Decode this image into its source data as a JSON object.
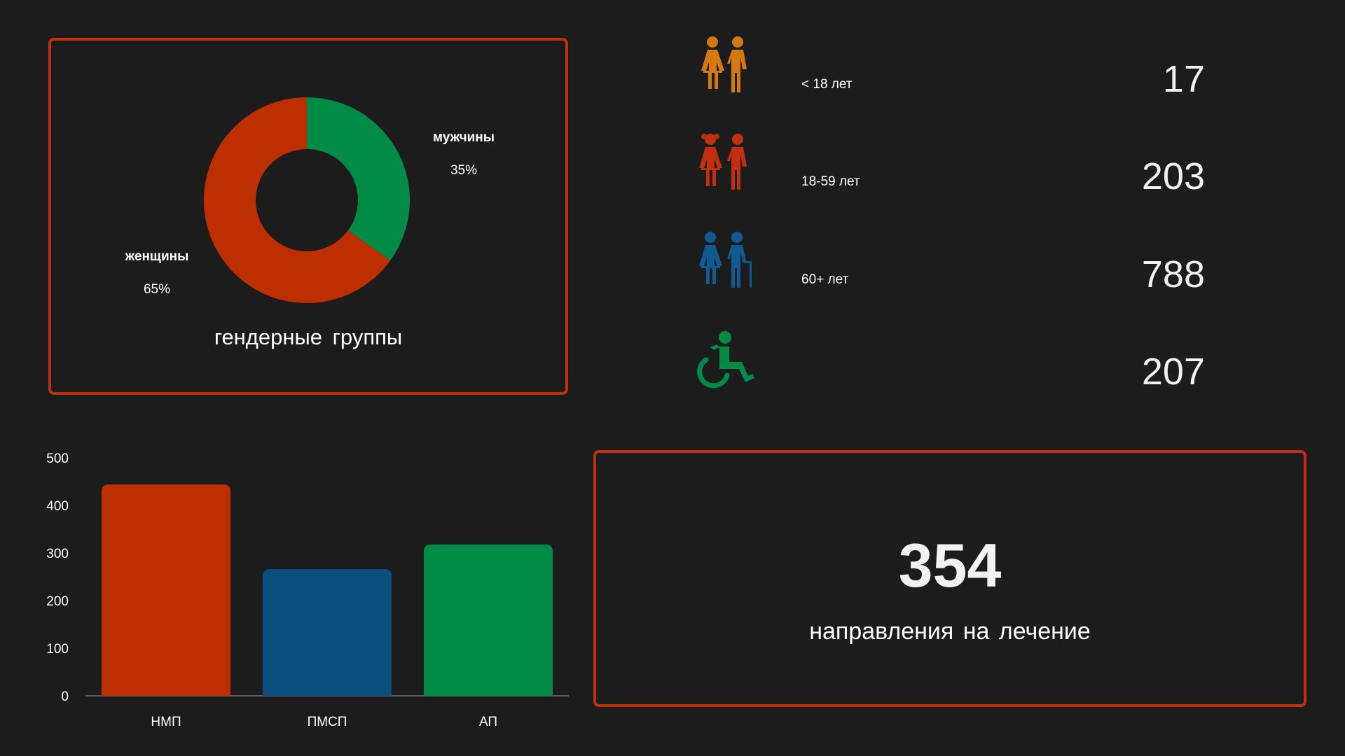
{
  "gender_panel": {
    "title": "гендерные группы",
    "slices": [
      {
        "label": "мужчины",
        "pct_text": "35%",
        "value": 35,
        "color": "#018a45"
      },
      {
        "label": "женщины",
        "pct_text": "65%",
        "value": 65,
        "color": "#be2f00"
      }
    ]
  },
  "age_groups": [
    {
      "label": "< 18 лет",
      "value": "17",
      "icon": "children-pair-icon",
      "color": "#d5790e"
    },
    {
      "label": "18-59 лет",
      "value": "203",
      "icon": "adults-pair-icon",
      "color": "#c0300e"
    },
    {
      "label": "60+ лет",
      "value": "788",
      "icon": "elderly-pair-icon",
      "color": "#0f5a93"
    },
    {
      "label": "",
      "value": "207",
      "icon": "wheelchair-icon",
      "color": "#018a45"
    }
  ],
  "kpi": {
    "value": "354",
    "label": "направления на лечение"
  },
  "chart_data": [
    {
      "type": "pie",
      "title": "гендерные группы",
      "categories": [
        "мужчины",
        "женщины"
      ],
      "values": [
        35,
        65
      ],
      "colors": [
        "#018a45",
        "#be2f00"
      ],
      "donut": true
    },
    {
      "type": "bar",
      "categories": [
        "НМП",
        "ПМСП",
        "АП"
      ],
      "values": [
        444,
        266,
        318
      ],
      "colors": [
        "#be2f00",
        "#0a4f7d",
        "#018a45"
      ],
      "ylim": [
        0,
        500
      ],
      "yticks": [
        0,
        100,
        200,
        300,
        400,
        500
      ],
      "grid": false
    }
  ]
}
